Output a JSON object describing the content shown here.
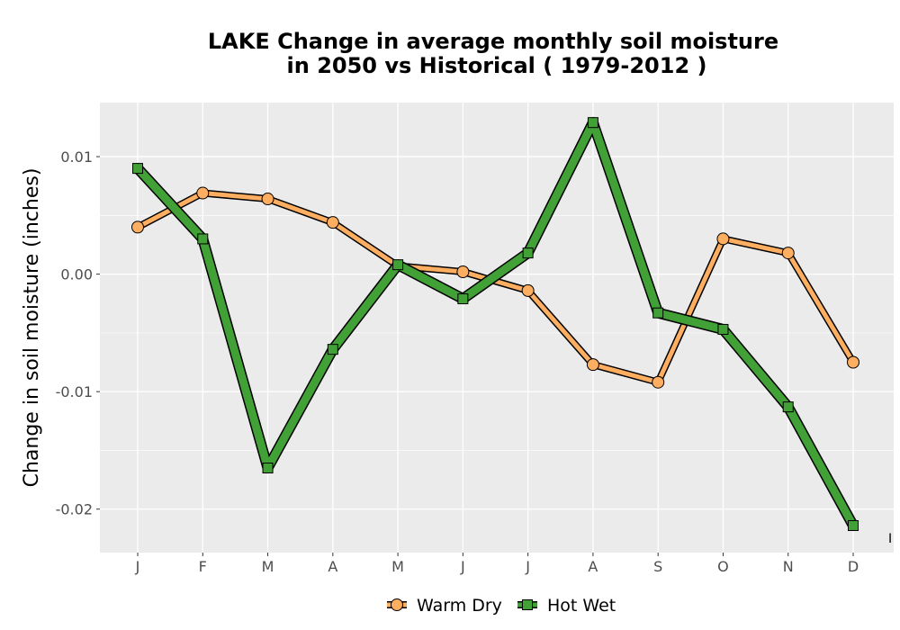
{
  "chart_data": {
    "type": "line",
    "title_line1": "LAKE  Change in average monthly soil moisture",
    "title_line2": "in 2050 vs Historical ( 1979-2012 )",
    "xlabel": "",
    "ylabel": "Change in soil moisture (inches)",
    "categories": [
      "J",
      "F",
      "M",
      "A",
      "M",
      "J",
      "J",
      "A",
      "S",
      "O",
      "N",
      "D"
    ],
    "y_ticks": [
      {
        "value": 0.01,
        "label": "0.01"
      },
      {
        "value": 0.0,
        "label": "0.00"
      },
      {
        "value": -0.01,
        "label": "-0.01"
      },
      {
        "value": -0.02,
        "label": "-0.02"
      }
    ],
    "ylim": [
      -0.0237,
      0.0146
    ],
    "grid": true,
    "legend_position": "bottom",
    "series": [
      {
        "name": "Warm Dry",
        "color": "#FDAE61",
        "marker": "circle",
        "values": [
          0.004,
          0.0069,
          0.0064,
          0.0044,
          0.0007,
          0.0002,
          -0.0014,
          -0.0077,
          -0.0092,
          0.003,
          0.0018,
          -0.0075
        ]
      },
      {
        "name": "Hot Wet",
        "color": "#41A036",
        "marker": "square",
        "values": [
          0.009,
          0.003,
          -0.0165,
          -0.0064,
          0.0008,
          -0.0021,
          0.0018,
          0.0129,
          -0.0033,
          -0.0047,
          -0.0113,
          -0.0214
        ]
      }
    ]
  }
}
